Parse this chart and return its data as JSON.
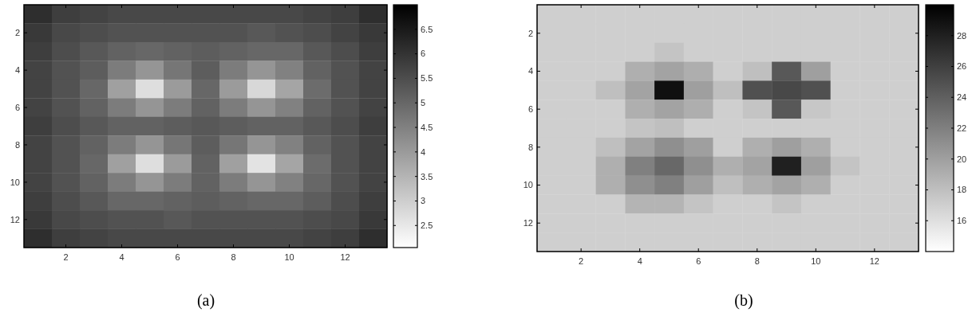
{
  "chart_data": [
    {
      "type": "heatmap",
      "title": "(a)",
      "categories": [
        null,
        "2",
        null,
        "4",
        null,
        "6",
        null,
        "8",
        null,
        "10",
        null,
        "12",
        null
      ],
      "y_categories": [
        null,
        "2",
        null,
        "4",
        null,
        "6",
        null,
        "8",
        null,
        "10",
        null,
        "12",
        null
      ],
      "clim": [
        2.05,
        7.0
      ],
      "cticks": [
        2.5,
        3,
        3.5,
        4,
        4.5,
        5,
        5.5,
        6,
        6.5
      ],
      "cells": [
        [
          6.1,
          5.8,
          5.7,
          5.6,
          5.6,
          5.6,
          5.6,
          5.6,
          5.6,
          5.6,
          5.7,
          5.8,
          6.1
        ],
        [
          5.9,
          5.6,
          5.5,
          5.4,
          5.4,
          5.4,
          5.4,
          5.4,
          5.3,
          5.4,
          5.5,
          5.7,
          5.9
        ],
        [
          5.8,
          5.5,
          5.3,
          5.1,
          5.0,
          5.1,
          5.2,
          5.1,
          5.0,
          5.0,
          5.3,
          5.5,
          5.8
        ],
        [
          5.7,
          5.4,
          5.2,
          4.6,
          4.1,
          4.7,
          5.2,
          4.6,
          4.1,
          4.5,
          5.1,
          5.4,
          5.7
        ],
        [
          5.7,
          5.4,
          5.0,
          3.9,
          2.7,
          4.0,
          5.0,
          4.0,
          2.8,
          3.8,
          4.9,
          5.4,
          5.7
        ],
        [
          5.7,
          5.4,
          5.1,
          4.6,
          4.1,
          4.6,
          5.1,
          4.6,
          4.1,
          4.5,
          5.1,
          5.4,
          5.7
        ],
        [
          5.8,
          5.5,
          5.3,
          5.1,
          5.1,
          5.2,
          5.3,
          5.2,
          5.1,
          5.1,
          5.3,
          5.5,
          5.8
        ],
        [
          5.7,
          5.4,
          5.1,
          4.6,
          4.1,
          4.7,
          5.2,
          4.7,
          4.1,
          4.5,
          5.1,
          5.4,
          5.7
        ],
        [
          5.7,
          5.4,
          5.0,
          3.9,
          2.7,
          4.0,
          5.1,
          3.9,
          2.6,
          3.8,
          4.9,
          5.4,
          5.7
        ],
        [
          5.7,
          5.4,
          5.1,
          4.6,
          4.1,
          4.6,
          5.1,
          4.6,
          4.1,
          4.5,
          5.0,
          5.4,
          5.7
        ],
        [
          5.8,
          5.5,
          5.3,
          5.0,
          5.0,
          5.1,
          5.2,
          5.1,
          5.0,
          5.0,
          5.2,
          5.5,
          5.8
        ],
        [
          5.9,
          5.6,
          5.5,
          5.4,
          5.4,
          5.3,
          5.4,
          5.4,
          5.4,
          5.4,
          5.5,
          5.6,
          5.9
        ],
        [
          6.1,
          5.8,
          5.7,
          5.6,
          5.6,
          5.6,
          5.6,
          5.6,
          5.6,
          5.6,
          5.7,
          5.8,
          6.1
        ]
      ]
    },
    {
      "type": "heatmap",
      "title": "(b)",
      "categories": [
        null,
        "2",
        null,
        "4",
        null,
        "6",
        null,
        "8",
        null,
        "10",
        null,
        "12",
        null
      ],
      "y_categories": [
        null,
        "2",
        null,
        "4",
        null,
        "6",
        null,
        "8",
        null,
        "10",
        null,
        "12",
        null
      ],
      "clim": [
        14,
        30
      ],
      "cticks": [
        16,
        18,
        20,
        22,
        24,
        26,
        28
      ],
      "cells": [
        [
          17,
          17,
          17,
          17,
          17,
          17,
          17,
          17,
          17,
          17,
          17,
          17,
          17
        ],
        [
          17,
          17,
          17,
          17,
          17,
          17,
          17,
          17,
          17,
          17,
          17,
          17,
          17
        ],
        [
          17,
          17,
          17,
          17,
          17.7,
          17,
          17,
          17,
          17,
          17,
          17,
          17,
          17
        ],
        [
          17,
          17,
          17,
          19,
          19.8,
          19.1,
          17,
          18,
          24.5,
          20,
          17,
          17,
          17
        ],
        [
          17,
          17,
          18,
          19.8,
          29,
          20,
          18,
          25,
          25.5,
          25,
          17,
          17,
          17
        ],
        [
          17,
          17,
          17,
          19,
          19.8,
          19.1,
          17,
          17.7,
          24.5,
          17.5,
          17,
          17,
          17
        ],
        [
          17,
          17,
          17,
          17.7,
          18,
          17,
          17,
          17,
          17,
          17,
          17,
          17,
          17
        ],
        [
          17,
          17,
          18,
          19.8,
          21,
          20,
          17,
          19,
          20,
          19,
          17,
          17,
          17
        ],
        [
          17,
          17,
          19,
          22,
          23.5,
          21,
          19,
          19.8,
          28,
          20,
          17.7,
          17,
          17
        ],
        [
          17,
          17,
          19,
          21,
          22,
          20,
          18,
          19,
          19.8,
          19,
          17,
          17,
          17
        ],
        [
          17,
          17,
          17,
          18.7,
          18.7,
          17.7,
          17,
          17,
          17.7,
          17,
          17,
          17,
          17
        ],
        [
          17,
          17,
          17,
          17,
          17,
          17,
          17,
          17,
          17,
          17,
          17,
          17,
          17
        ],
        [
          17,
          17,
          17,
          17,
          17,
          17,
          17,
          17,
          17,
          17,
          17,
          17,
          17
        ]
      ]
    }
  ]
}
